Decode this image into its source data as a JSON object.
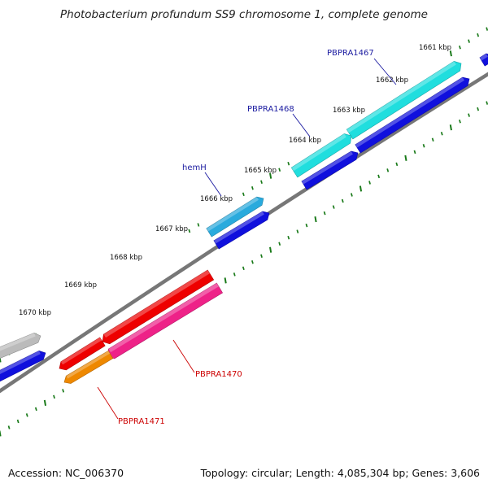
{
  "title": "Photobacterium profundum SS9 chromosome 1, complete genome",
  "footer": {
    "accession": "Accession: NC_006370",
    "summary": "Topology: circular; Length: 4,085,304 bp; Genes: 3,606"
  },
  "colors": {
    "backbone": "#777777",
    "tick": "#1a7a1a",
    "label_forward": "#1a1aa0",
    "label_reverse": "#cc0000"
  },
  "scale": {
    "unit": "kbp",
    "labels": [
      "1661 kbp",
      "1662 kbp",
      "1663 kbp",
      "1664 kbp",
      "1665 kbp",
      "1666 kbp",
      "1667 kbp",
      "1668 kbp",
      "1669 kbp",
      "1670 kbp"
    ]
  },
  "genes": [
    {
      "id": "g-cyan-1467",
      "label": "PBPRA1467",
      "color": "#20dede",
      "strand": "+"
    },
    {
      "id": "g-blue-1467",
      "label": "",
      "color": "#1010dd",
      "strand": "+"
    },
    {
      "id": "g-cyan-1468",
      "label": "PBPRA1468",
      "color": "#20dede",
      "strand": "+"
    },
    {
      "id": "g-blue-1468",
      "label": "",
      "color": "#1010dd",
      "strand": "+"
    },
    {
      "id": "g-hemH",
      "label": "hemH",
      "color": "#29aadd",
      "strand": "+"
    },
    {
      "id": "g-blue-hemH",
      "label": "",
      "color": "#1010dd",
      "strand": "+"
    },
    {
      "id": "g-red-1470",
      "label": "",
      "color": "#ee0000",
      "strand": "-"
    },
    {
      "id": "g-pink-1470",
      "label": "PBPRA1470",
      "color": "#ee2288",
      "strand": "-"
    },
    {
      "id": "g-red-1471",
      "label": "",
      "color": "#ee0000",
      "strand": "-"
    },
    {
      "id": "g-orange-1471",
      "label": "PBPRA1471",
      "color": "#ee8800",
      "strand": "-"
    },
    {
      "id": "g-grey",
      "label": "",
      "color": "#bbbbbb",
      "strand": "+"
    },
    {
      "id": "g-blue-left",
      "label": "",
      "color": "#1010dd",
      "strand": "+"
    },
    {
      "id": "g-blue-right",
      "label": "",
      "color": "#1010dd",
      "strand": "+"
    }
  ],
  "gene_labels": {
    "PBPRA1467": "PBPRA1467",
    "PBPRA1468": "PBPRA1468",
    "hemH": "hemH",
    "PBPRA1470": "PBPRA1470",
    "PBPRA1471": "PBPRA1471"
  }
}
